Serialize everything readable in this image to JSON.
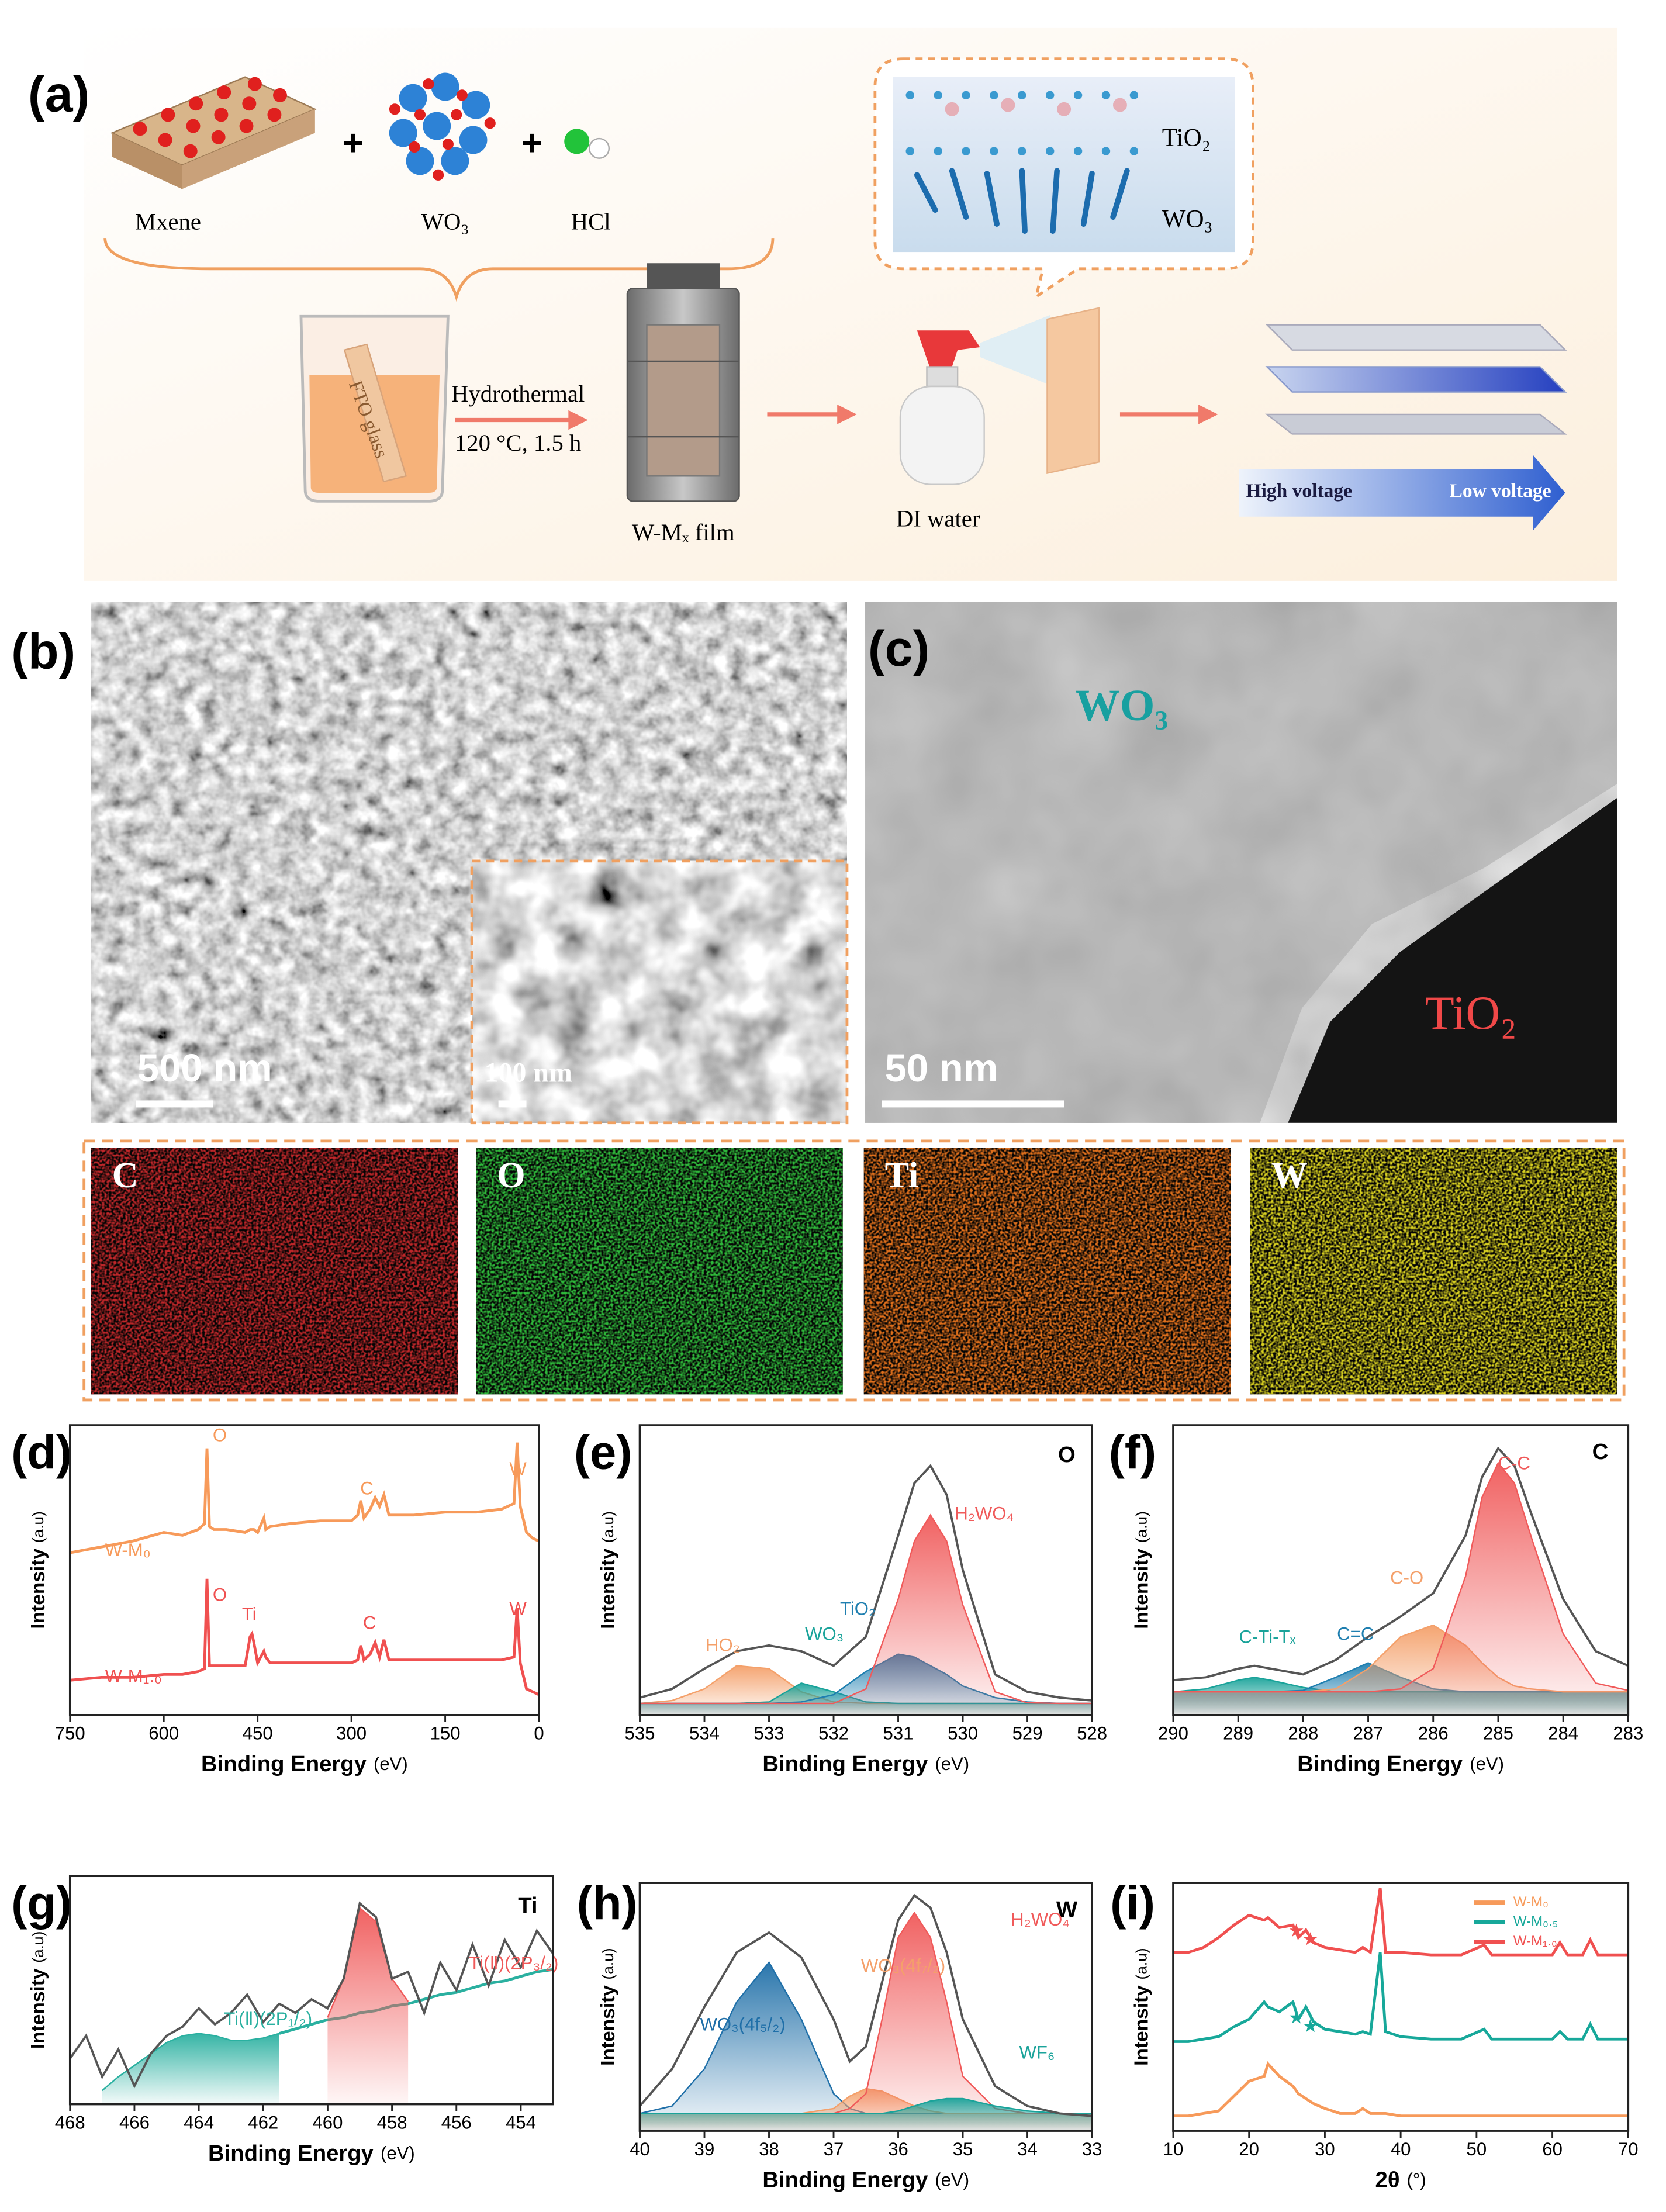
{
  "panel_a": {
    "label": "(a)",
    "reactants": [
      "Mxene",
      "WO₃",
      "HCl"
    ],
    "plus": "+",
    "process": "Hydrothermal",
    "conditions": "120 °C, 1.5 h",
    "substrate": "FTO glass",
    "film": "W-Mₓ film",
    "spray": "DI water",
    "layers": [
      "TiO₂",
      "WO₃"
    ],
    "gradient": [
      "High voltage",
      "Low voltage"
    ]
  },
  "panel_b": {
    "label": "(b)",
    "scale": "500 nm",
    "inset_scale": "100 nm"
  },
  "panel_c": {
    "label": "(c)",
    "phases": [
      "WO₃",
      "TiO₂"
    ],
    "scale": "50 nm"
  },
  "eds_maps": [
    {
      "element": "C",
      "color": "#c0282a"
    },
    {
      "element": "O",
      "color": "#2fb83a"
    },
    {
      "element": "Ti",
      "color": "#e0701c"
    },
    {
      "element": "W",
      "color": "#d8d020"
    }
  ],
  "chart_data": [
    {
      "type": "line",
      "label": "(d)",
      "x_label": "Binding Energy",
      "x_unit": "(eV)",
      "y_label": "Intensity",
      "y_unit": "(a.u)",
      "xlim": [
        750,
        0
      ],
      "xticks": [
        750,
        600,
        450,
        300,
        150,
        0
      ],
      "ylim": [
        0,
        100
      ],
      "x": [
        750,
        700,
        650,
        600,
        570,
        545,
        535,
        531,
        527,
        520,
        500,
        470,
        462,
        459,
        456,
        450,
        440,
        437,
        430,
        400,
        350,
        300,
        290,
        285,
        280,
        270,
        262,
        255,
        248,
        240,
        200,
        150,
        100,
        60,
        40,
        35,
        30,
        20,
        10,
        0
      ],
      "series": [
        {
          "name": "W-M₀",
          "color": "#f79a5a",
          "style": "line",
          "values": [
            56,
            58,
            60,
            63,
            62,
            64,
            66,
            92,
            65,
            64,
            64,
            63,
            64,
            64,
            64,
            63,
            68,
            64,
            65,
            66,
            67,
            67,
            69,
            74,
            68,
            71,
            75,
            72,
            76,
            69,
            69,
            70,
            70,
            71,
            73,
            94,
            72,
            63,
            61,
            60
          ]
        },
        {
          "name": "W-M₁.₀",
          "color": "#f05050",
          "style": "line",
          "values": [
            12,
            13,
            13,
            14,
            14,
            15,
            16,
            47,
            17,
            17,
            17,
            17,
            27,
            28,
            25,
            18,
            22,
            20,
            18,
            18,
            18,
            18,
            19,
            24,
            19,
            21,
            25,
            20,
            26,
            19,
            19,
            19,
            19,
            19,
            20,
            37,
            18,
            9,
            8,
            7
          ]
        }
      ],
      "annotations": [
        "O",
        "C",
        "W",
        "O",
        "Ti",
        "C",
        "W"
      ]
    },
    {
      "type": "line",
      "label": "(e)",
      "element": "O",
      "x_label": "Binding Energy",
      "x_unit": "(eV)",
      "y_label": "Intensity",
      "y_unit": "(a.u)",
      "xlim": [
        535,
        528
      ],
      "xticks": [
        535,
        534,
        533,
        532,
        531,
        530,
        529,
        528
      ],
      "ylim": [
        0,
        100
      ],
      "x": [
        535,
        534.5,
        534,
        533.5,
        533,
        532.5,
        532,
        531.5,
        531,
        530.75,
        530.5,
        530.25,
        530,
        529.5,
        529,
        528.5,
        528
      ],
      "series": [
        {
          "name": "HO₂",
          "color": "#f4a06a",
          "style": "fill",
          "values": [
            4,
            5,
            9,
            17,
            16,
            8,
            4.5,
            4,
            4,
            4,
            4,
            4,
            4,
            4,
            4,
            4,
            4
          ]
        },
        {
          "name": "WO₃",
          "color": "#1aa39a",
          "style": "fill",
          "values": [
            4,
            4,
            4,
            4,
            4.5,
            11,
            8,
            4.5,
            4,
            4,
            4,
            4,
            4,
            4,
            4,
            4,
            4
          ]
        },
        {
          "name": "TiO₂",
          "color": "#1f7fb0",
          "style": "fill",
          "values": [
            4,
            4,
            4,
            4,
            4,
            4.5,
            7,
            15,
            21,
            20,
            17,
            14,
            10,
            6,
            4.5,
            4,
            4
          ]
        },
        {
          "name": "H₂WO₄",
          "color": "#f05a5a",
          "style": "fill",
          "values": [
            4,
            4,
            4,
            4,
            4,
            4,
            4,
            9,
            40,
            60,
            69,
            60,
            38,
            8,
            4.2,
            4,
            4
          ]
        },
        {
          "color": "#555555",
          "style": "line",
          "values": [
            6,
            9,
            16,
            22,
            24,
            22,
            17,
            27,
            62,
            80,
            86,
            76,
            50,
            14,
            8,
            6,
            5
          ]
        }
      ]
    },
    {
      "type": "line",
      "label": "(f)",
      "element": "C",
      "x_label": "Binding Energy",
      "x_unit": "(eV)",
      "y_label": "Intensity",
      "y_unit": "(a.u)",
      "xlim": [
        290,
        283
      ],
      "xticks": [
        290,
        289,
        288,
        287,
        286,
        285,
        284,
        283
      ],
      "ylim": [
        0,
        100
      ],
      "x": [
        290,
        289.5,
        289,
        288.75,
        288.5,
        288,
        287.5,
        287,
        286.5,
        286,
        285.5,
        285.25,
        285,
        284.75,
        284.5,
        284,
        283.5,
        283
      ],
      "series": [
        {
          "name": "C-Ti-Tₓ",
          "color": "#1aa39a",
          "style": "fill",
          "values": [
            8,
            9,
            12,
            13,
            12,
            9.5,
            8,
            8,
            8,
            8,
            8,
            8,
            8,
            8,
            8,
            8,
            8,
            8
          ]
        },
        {
          "name": "C=C",
          "color": "#1f7fb0",
          "style": "fill",
          "values": [
            8,
            8,
            8,
            8,
            8,
            8.5,
            13,
            18,
            13,
            9,
            8,
            8,
            8,
            8,
            8,
            8,
            8,
            8
          ]
        },
        {
          "name": "C-O",
          "color": "#f4a06a",
          "style": "fill",
          "values": [
            8,
            8,
            8,
            8,
            8,
            8,
            9,
            16,
            27,
            31,
            24,
            18,
            13,
            10,
            9,
            8,
            8,
            8
          ]
        },
        {
          "name": "C-C",
          "color": "#f05a5a",
          "style": "fill",
          "values": [
            8,
            8,
            8,
            8,
            8,
            8,
            8,
            8,
            9,
            16,
            48,
            75,
            87,
            80,
            62,
            28,
            11,
            8.5
          ]
        },
        {
          "color": "#555555",
          "style": "line",
          "values": [
            12,
            13,
            16,
            17,
            16,
            14,
            19,
            27,
            34,
            42,
            62,
            82,
            92,
            86,
            70,
            40,
            22,
            17
          ]
        }
      ]
    },
    {
      "type": "line",
      "label": "(g)",
      "element": "Ti",
      "x_label": "Binding Energy",
      "x_unit": "(eV)",
      "y_label": "Intensity",
      "y_unit": "(a.u)",
      "xlim": [
        468,
        453
      ],
      "xticks": [
        468,
        466,
        464,
        462,
        460,
        458,
        456,
        454
      ],
      "ylim": [
        0,
        100
      ],
      "x": [
        468,
        467.5,
        467,
        466.5,
        466,
        465.5,
        465,
        464.5,
        464,
        463.5,
        463,
        462.5,
        462,
        461.5,
        461,
        460.5,
        460,
        459.5,
        459,
        458.5,
        458,
        457.5,
        457,
        456.5,
        456,
        455.5,
        455,
        454.5,
        454,
        453.5,
        453
      ],
      "series": [
        {
          "name": "Ti(Ⅱ)(2P₁/₂)",
          "color": "#2ab0a0",
          "style": "fill",
          "values": [
            null,
            null,
            6,
            12,
            17,
            22,
            27,
            30,
            31,
            30,
            28,
            28,
            29,
            31,
            null,
            null,
            null,
            null,
            null,
            null,
            null,
            null,
            null,
            null,
            null,
            null,
            null,
            null,
            null,
            null,
            null
          ]
        },
        {
          "color": "#2ab0a0",
          "style": "line",
          "values": [
            null,
            null,
            null,
            null,
            null,
            null,
            null,
            null,
            null,
            null,
            null,
            null,
            null,
            31,
            33,
            35,
            37,
            38,
            40,
            41,
            43,
            44,
            46,
            48,
            49,
            51,
            53,
            54,
            56,
            58,
            59
          ]
        },
        {
          "name": "Ti(Ⅱ)(2P₃/₂)",
          "color": "#f05a5a",
          "style": "fill",
          "values": [
            null,
            null,
            null,
            null,
            null,
            null,
            null,
            null,
            null,
            null,
            null,
            null,
            null,
            null,
            null,
            null,
            38,
            55,
            86,
            80,
            55,
            45,
            null,
            null,
            null,
            null,
            null,
            null,
            null,
            null,
            null
          ]
        },
        {
          "color": "#555555",
          "style": "line",
          "values": [
            20,
            30,
            12,
            24,
            8,
            22,
            30,
            34,
            42,
            35,
            40,
            48,
            36,
            44,
            40,
            46,
            42,
            55,
            88,
            82,
            55,
            58,
            40,
            62,
            50,
            70,
            52,
            72,
            60,
            76,
            66
          ]
        }
      ]
    },
    {
      "type": "line",
      "label": "(h)",
      "element": "W",
      "x_label": "Binding Energy",
      "x_unit": "(eV)",
      "y_label": "Intensity",
      "y_unit": "(a.u)",
      "xlim": [
        40,
        33
      ],
      "xticks": [
        40,
        39,
        38,
        37,
        36,
        35,
        34,
        33
      ],
      "ylim": [
        0,
        100
      ],
      "x": [
        40,
        39.5,
        39,
        38.5,
        38,
        37.5,
        37,
        36.75,
        36.5,
        36.25,
        36,
        35.75,
        35.5,
        35.25,
        35,
        34.5,
        34,
        33.5,
        33
      ],
      "series": [
        {
          "name": "WO₃(4f₅/₂)",
          "color": "#1f6fa8",
          "style": "fill",
          "values": [
            7,
            10,
            25,
            52,
            68,
            45,
            15,
            9,
            7,
            7,
            7,
            7,
            7,
            7,
            7,
            7,
            7,
            7,
            7
          ]
        },
        {
          "name": "WO₃(4f₇/₂)",
          "color": "#f4a06a",
          "style": "fill",
          "values": [
            7,
            7,
            7,
            7,
            7,
            7,
            9,
            14,
            17,
            16,
            13,
            10,
            8,
            7,
            7,
            7,
            7,
            7,
            7
          ]
        },
        {
          "name": "H₂WO₄",
          "color": "#f05a5a",
          "style": "fill",
          "values": [
            7,
            7,
            7,
            7,
            7,
            7,
            7,
            9,
            15,
            45,
            78,
            88,
            78,
            52,
            22,
            9,
            7,
            7,
            7
          ]
        },
        {
          "name": "WF₆",
          "color": "#1aa39a",
          "style": "fill",
          "values": [
            7,
            7,
            7,
            7,
            7,
            7,
            7,
            7,
            7,
            7,
            8,
            10,
            12,
            13,
            13,
            10,
            8,
            7,
            7
          ]
        },
        {
          "color": "#555555",
          "style": "line",
          "values": [
            10,
            25,
            50,
            72,
            80,
            70,
            45,
            28,
            34,
            60,
            85,
            95,
            90,
            72,
            45,
            18,
            10,
            7,
            6
          ]
        }
      ]
    },
    {
      "type": "line",
      "label": "(i)",
      "x_label": "2θ",
      "x_unit": "(°)",
      "y_label": "Intensity",
      "y_unit": "(a.u)",
      "xlim": [
        10,
        70
      ],
      "xticks": [
        10,
        20,
        30,
        40,
        50,
        60,
        70
      ],
      "ylim": [
        0,
        100
      ],
      "legend": "upper right",
      "x": [
        10,
        12,
        14,
        16,
        18,
        20,
        22,
        22.5,
        24,
        25.8,
        26.5,
        27.5,
        28.5,
        30,
        32,
        34,
        35,
        36,
        37.3,
        38,
        40,
        44,
        48,
        51,
        52,
        56,
        60,
        61,
        62,
        64,
        65,
        66,
        70
      ],
      "series": [
        {
          "name": "W-M₀",
          "color": "#f79a5a",
          "style": "line",
          "values": [
            6,
            6,
            7,
            8,
            14,
            20,
            22,
            27,
            22,
            18,
            15,
            13,
            11,
            9,
            7,
            7,
            9,
            7,
            7,
            7,
            6,
            6,
            6,
            6,
            6,
            6,
            6,
            6,
            6,
            6,
            6,
            6,
            6
          ]
        },
        {
          "name": "W-M₀.₅",
          "color": "#17a89a",
          "style": "line",
          "values": [
            36,
            36,
            37,
            38,
            42,
            45,
            52,
            50,
            48,
            52,
            45,
            50,
            44,
            41,
            40,
            39,
            40,
            39,
            72,
            40,
            38,
            37,
            37,
            41,
            37,
            37,
            37,
            40,
            37,
            37,
            43,
            37,
            37
          ]
        },
        {
          "name": "W-M₁.₀",
          "color": "#f05050",
          "style": "line",
          "values": [
            72,
            72,
            74,
            78,
            83,
            87,
            85,
            86,
            82,
            83,
            78,
            81,
            76,
            74,
            73,
            72,
            74,
            72,
            98,
            72,
            72,
            71,
            71,
            75,
            71,
            71,
            71,
            76,
            71,
            71,
            77,
            71,
            71
          ]
        }
      ],
      "annotations": [
        "★",
        "★",
        "★",
        "★"
      ]
    }
  ]
}
